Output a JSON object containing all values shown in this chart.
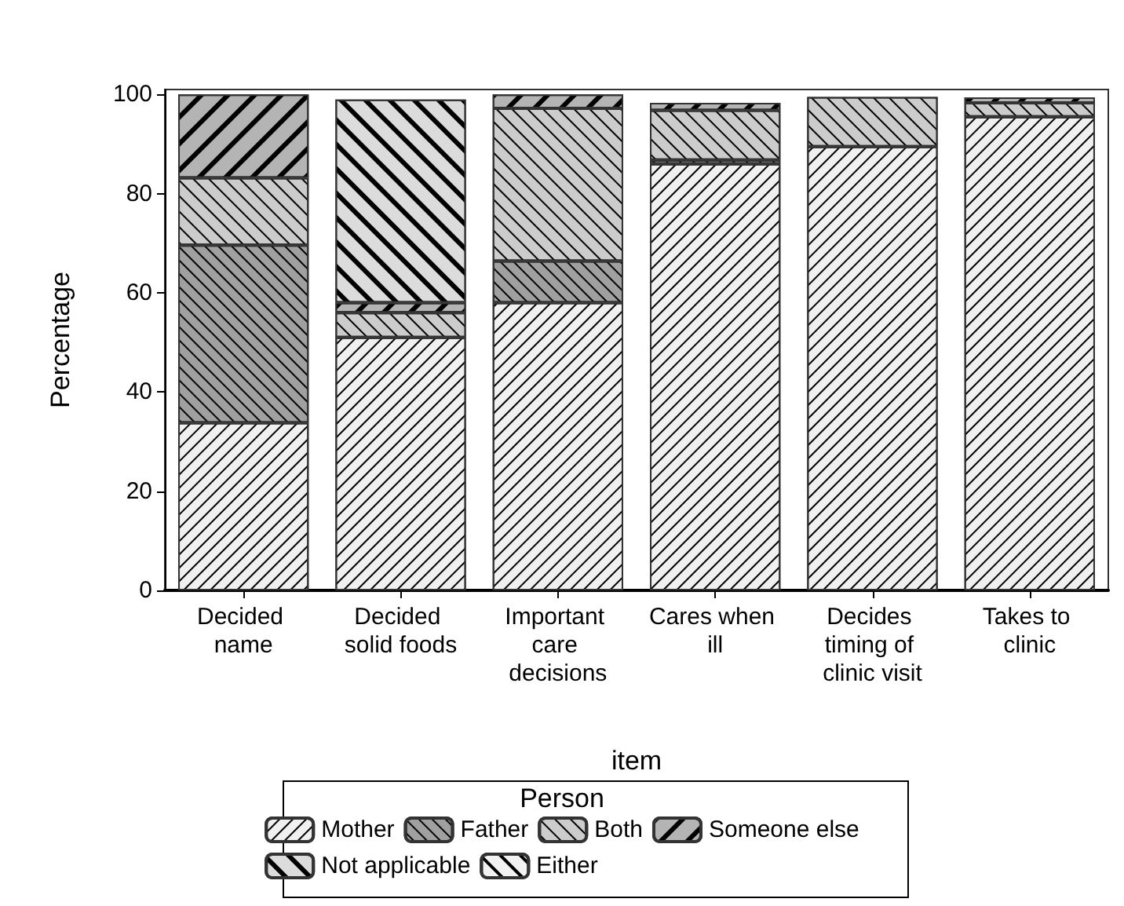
{
  "chart_data": {
    "type": "bar",
    "stacked": true,
    "xlabel": "item",
    "ylabel": "Percentage",
    "legend_title": "Person",
    "legend": "bottom",
    "grid": false,
    "categories": [
      "Decided name",
      "Decided solid foods",
      "Important care decisions",
      "Cares when ill",
      "Decides timing of clinic visit",
      "Takes to clinic"
    ],
    "ylim": [
      0,
      101
    ],
    "yticks": [
      0,
      20,
      40,
      60,
      80,
      100
    ],
    "series": [
      {
        "name": "Mother",
        "color": "#f0f0f0",
        "values": [
          33.8,
          51,
          58,
          86,
          89.5,
          95.5
        ]
      },
      {
        "name": "Father",
        "color": "#a0a0a0",
        "values": [
          35.8,
          null,
          8.4,
          0.8,
          null,
          null
        ]
      },
      {
        "name": "Both",
        "color": "#cccccc",
        "values": [
          13.6,
          5,
          30.8,
          10,
          10,
          2.8
        ]
      },
      {
        "name": "Someone else",
        "color": "#b4b4b4",
        "values": [
          16.8,
          2,
          2.8,
          1.5,
          null,
          1.1
        ]
      },
      {
        "name": "Not applicable",
        "color": "#dcdcdc",
        "values": [
          null,
          41,
          null,
          null,
          null,
          null
        ]
      },
      {
        "name": "Either",
        "color": "#f2f2f2",
        "values": [
          null,
          null,
          null,
          null,
          null,
          null
        ]
      }
    ]
  }
}
